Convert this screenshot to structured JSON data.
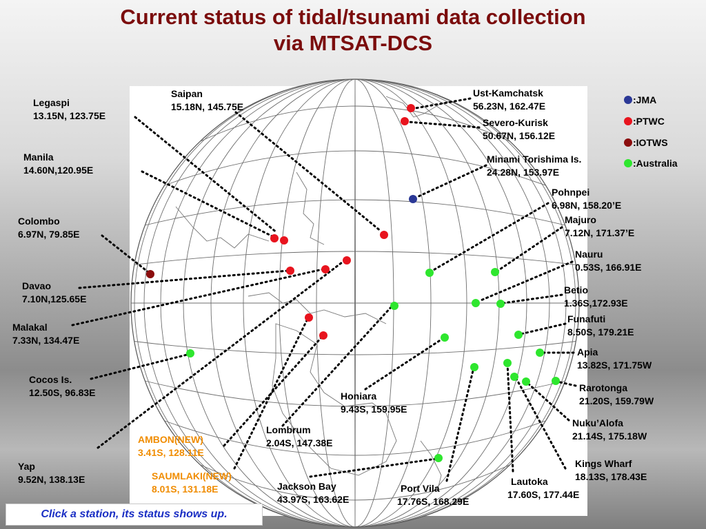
{
  "title": {
    "line1": "Current status of tidal/tsunami data collection",
    "line2": "via MTSAT-DCS"
  },
  "legend": [
    {
      "key": "jma",
      "label": ":JMA",
      "color": "#2b3896"
    },
    {
      "key": "ptwc",
      "label": ":PTWC",
      "color": "#e8141e"
    },
    {
      "key": "iotws",
      "label": ":IOTWS",
      "color": "#8b0d0d"
    },
    {
      "key": "australia",
      "label": ":Australia",
      "color": "#2ee62e"
    }
  ],
  "stations": [
    {
      "name": "Legaspi",
      "coords": "13.15N, 123.75E",
      "agency": "ptwc"
    },
    {
      "name": "Saipan",
      "coords": "15.18N, 145.75E",
      "agency": "ptwc"
    },
    {
      "name": "Ust-Kamchatsk",
      "coords": "56.23N, 162.47E",
      "agency": "ptwc"
    },
    {
      "name": "Severo-Kurisk",
      "coords": "50.67N, 156.12E",
      "agency": "ptwc"
    },
    {
      "name": "Minami Torishima Is.",
      "coords": "24.28N, 153.97E",
      "agency": "jma"
    },
    {
      "name": "Manila",
      "coords": "14.60N,120.95E",
      "agency": "ptwc"
    },
    {
      "name": "Pohnpei",
      "coords": "6.98N, 158.20’E",
      "agency": "australia"
    },
    {
      "name": "Majuro",
      "coords": "7.12N, 171.37’E",
      "agency": "australia"
    },
    {
      "name": "Colombo",
      "coords": "6.97N, 79.85E",
      "agency": "iotws"
    },
    {
      "name": "Nauru",
      "coords": "0.53S, 166.91E",
      "agency": "australia"
    },
    {
      "name": "Davao",
      "coords": "7.10N,125.65E",
      "agency": "ptwc"
    },
    {
      "name": "Betio",
      "coords": "1.36S,172.93E",
      "agency": "australia"
    },
    {
      "name": "Malakal",
      "coords": "7.33N, 134.47E",
      "agency": "ptwc"
    },
    {
      "name": "Funafuti",
      "coords": "8.50S, 179.21E",
      "agency": "australia"
    },
    {
      "name": "Apia",
      "coords": "13.82S, 171.75W",
      "agency": "australia"
    },
    {
      "name": "Cocos Is.",
      "coords": "12.50S, 96.83E",
      "agency": "australia"
    },
    {
      "name": "Rarotonga",
      "coords": "21.20S, 159.79W",
      "agency": "australia"
    },
    {
      "name": "Honiara",
      "coords": "9.43S, 159.95E",
      "agency": "australia"
    },
    {
      "name": "Nuku’Alofa",
      "coords": "21.14S, 175.18W",
      "agency": "australia"
    },
    {
      "name": "Lombrum",
      "coords": "2.04S, 147.38E",
      "agency": "australia"
    },
    {
      "name": "AMBON(NEW)",
      "coords": "3.41S, 128.11E",
      "agency": "ptwc",
      "status": "new"
    },
    {
      "name": "Kings Wharf",
      "coords": "18.13S, 178.43E",
      "agency": "australia"
    },
    {
      "name": "Yap",
      "coords": "9.52N, 138.13E",
      "agency": "ptwc"
    },
    {
      "name": "SAUMLAKI(NEW)",
      "coords": "8.01S, 131.18E",
      "agency": "ptwc",
      "status": "new"
    },
    {
      "name": "Jackson Bay",
      "coords": "43.97S, 163.62E",
      "agency": "australia"
    },
    {
      "name": "Port Vila",
      "coords": "17.76S, 168.29E",
      "agency": "australia"
    },
    {
      "name": "Lautoka",
      "coords": "17.60S, 177.44E",
      "agency": "australia"
    }
  ],
  "note": "Click a station, its status shows up."
}
